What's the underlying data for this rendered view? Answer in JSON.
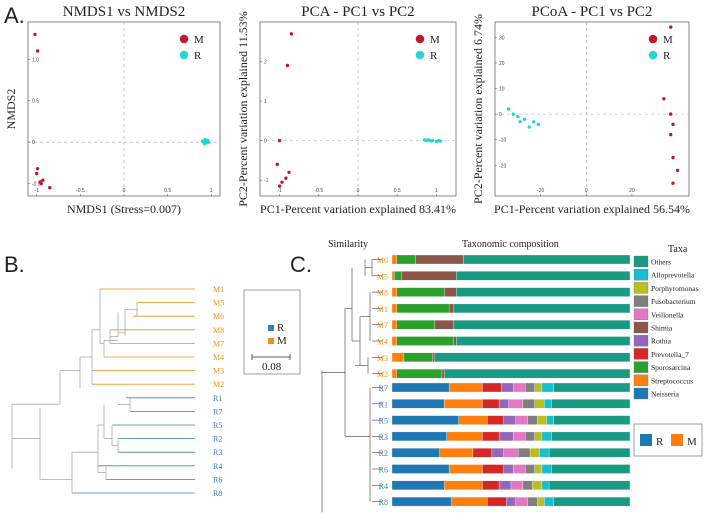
{
  "panel_labels": [
    "A.",
    "B.",
    "C."
  ],
  "colors": {
    "M": "#c0172c",
    "R": "#22d6d6",
    "treeM": "#e8941a",
    "treeR": "#3a7fc1",
    "grey": "#bbbbbb"
  },
  "chart_data": [
    {
      "type": "scatter",
      "title": "NMDS1 vs NMDS2",
      "xlabel": "NMDS1 (Stress=0.007)",
      "ylabel": "NMDS2",
      "xlim": [
        -1.1,
        1.1
      ],
      "ylim": [
        -0.65,
        1.45
      ],
      "xticks": [
        -1,
        -0.5,
        0,
        0.5,
        1
      ],
      "yticks": [
        1,
        0.5,
        0,
        -0.5
      ],
      "ytick_labels": [
        "1.0",
        "0.5",
        "0",
        "-0.5"
      ],
      "legend": [
        "M",
        "R"
      ],
      "series": [
        {
          "name": "M",
          "x": [
            -1.02,
            -0.99,
            -0.99,
            -1.0,
            -0.96,
            -0.93,
            -0.95,
            -0.85
          ],
          "y": [
            1.3,
            1.1,
            -0.32,
            -0.38,
            -0.48,
            -0.46,
            -0.5,
            -0.55
          ]
        },
        {
          "name": "R",
          "x": [
            0.9,
            0.92,
            0.93,
            0.95,
            0.96,
            0.94,
            0.97,
            0.91
          ],
          "y": [
            0.01,
            -0.02,
            0.03,
            0.0,
            0.02,
            -0.01,
            0.0,
            0.01
          ]
        }
      ]
    },
    {
      "type": "scatter",
      "title": "PCA - PC1 vs PC2",
      "xlabel": "PC1-Percent variation explained 83.41%",
      "ylabel": "PC2-Percent variation explained 11.53%",
      "xlim": [
        -1.25,
        1.25
      ],
      "ylim": [
        -1.4,
        3.0
      ],
      "xticks": [
        -1,
        -0.5,
        0,
        0.5,
        1
      ],
      "yticks": [
        2,
        1,
        0,
        -1
      ],
      "ytick_labels": [
        "2",
        "1",
        "0",
        "-1"
      ],
      "legend": [
        "M",
        "R"
      ],
      "series": [
        {
          "name": "M",
          "x": [
            -0.85,
            -0.9,
            -1.0,
            -1.03,
            -0.88,
            -0.92,
            -0.97,
            -1.0
          ],
          "y": [
            2.7,
            1.9,
            0.0,
            -0.6,
            -0.8,
            -0.95,
            -1.05,
            -1.15
          ]
        },
        {
          "name": "R",
          "x": [
            0.85,
            0.88,
            0.9,
            0.93,
            0.95,
            1.0,
            1.03,
            1.05
          ],
          "y": [
            0.02,
            0.0,
            0.02,
            -0.01,
            0.0,
            -0.02,
            0.0,
            -0.01
          ]
        }
      ]
    },
    {
      "type": "scatter",
      "title": "PCoA - PC1 vs PC2",
      "xlabel": "PC1-Percent variation explained 56.54%",
      "ylabel": "PC2-Percent variation explained 6.74%",
      "xlim": [
        -40,
        45
      ],
      "ylim": [
        -32,
        36
      ],
      "xticks": [
        -20,
        0,
        20
      ],
      "yticks": [
        30,
        20,
        10,
        0,
        -10,
        -20
      ],
      "ytick_labels": [
        "30",
        "20",
        "10",
        "0",
        "-10",
        "-20"
      ],
      "legend": [
        "M",
        "R"
      ],
      "series": [
        {
          "name": "M",
          "x": [
            37,
            34,
            37,
            38,
            37,
            38,
            40,
            38
          ],
          "y": [
            34,
            6,
            0,
            -4,
            -8,
            -17,
            -22,
            -27
          ]
        },
        {
          "name": "R",
          "x": [
            -34,
            -32,
            -30,
            -29,
            -27,
            -25,
            -23,
            -21
          ],
          "y": [
            2,
            0,
            -1,
            -3,
            -2,
            -5,
            -3,
            -4
          ]
        }
      ]
    }
  ],
  "dendrogram": {
    "labels": [
      "M1",
      "M5",
      "M6",
      "M8",
      "M7",
      "M4",
      "M3",
      "M2",
      "R1",
      "R7",
      "R5",
      "R2",
      "R3",
      "R4",
      "R6",
      "R8"
    ],
    "groups": [
      "M",
      "M",
      "M",
      "M",
      "M",
      "M",
      "M",
      "M",
      "R",
      "R",
      "R",
      "R",
      "R",
      "R",
      "R",
      "R"
    ],
    "legend": [
      "R",
      "M"
    ],
    "scale_label": "0.08"
  },
  "composition": {
    "similarity_label": "Similarity",
    "title": "Taxonomic composition",
    "taxa_title": "Taxa",
    "samples": [
      "M6",
      "M5",
      "M8",
      "M1",
      "M7",
      "M4",
      "M3",
      "M2",
      "R7",
      "R1",
      "R5",
      "R3",
      "R2",
      "R6",
      "R4",
      "R8"
    ],
    "taxa": [
      "Others",
      "Alloprevotella",
      "Porphyromonas",
      "Fusobacterium",
      "Veillonella",
      "Shimia",
      "Rothia",
      "Prevotella_7",
      "Sporosarcina",
      "Streptococcus",
      "Neisseria"
    ],
    "taxa_colors": {
      "Others": "#1a9a82",
      "Alloprevotella": "#17becf",
      "Porphyromonas": "#bcbd22",
      "Fusobacterium": "#7f7f7f",
      "Veillonella": "#e377c2",
      "Shimia": "#8c564b",
      "Rothia": "#9467bd",
      "Prevotella_7": "#d62728",
      "Sporosarcina": "#2ca02c",
      "Streptococcus": "#ff7f0e",
      "Neisseria": "#1f77b4"
    },
    "fractions": {
      "M6": {
        "Streptococcus": 0.02,
        "Sporosarcina": 0.08,
        "Shimia": 0.2,
        "Others": 0.7
      },
      "M5": {
        "Streptococcus": 0.01,
        "Sporosarcina": 0.03,
        "Shimia": 0.23,
        "Others": 0.73
      },
      "M8": {
        "Streptococcus": 0.02,
        "Sporosarcina": 0.2,
        "Shimia": 0.05,
        "Others": 0.73
      },
      "M1": {
        "Streptococcus": 0.02,
        "Sporosarcina": 0.22,
        "Shimia": 0.02,
        "Others": 0.74
      },
      "M7": {
        "Streptococcus": 0.02,
        "Sporosarcina": 0.16,
        "Shimia": 0.08,
        "Others": 0.74
      },
      "M4": {
        "Streptococcus": 0.02,
        "Sporosarcina": 0.24,
        "Shimia": 0.01,
        "Others": 0.73
      },
      "M3": {
        "Streptococcus": 0.05,
        "Sporosarcina": 0.12,
        "Shimia": 0.01,
        "Others": 0.82
      },
      "M2": {
        "Streptococcus": 0.02,
        "Sporosarcina": 0.19,
        "Shimia": 0.01,
        "Others": 0.78
      },
      "R7": {
        "Neisseria": 0.24,
        "Streptococcus": 0.14,
        "Prevotella_7": 0.08,
        "Rothia": 0.05,
        "Veillonella": 0.05,
        "Fusobacterium": 0.04,
        "Porphyromonas": 0.03,
        "Alloprevotella": 0.05,
        "Others": 0.32
      },
      "R1": {
        "Neisseria": 0.22,
        "Streptococcus": 0.16,
        "Prevotella_7": 0.07,
        "Rothia": 0.04,
        "Veillonella": 0.06,
        "Fusobacterium": 0.05,
        "Porphyromonas": 0.04,
        "Alloprevotella": 0.03,
        "Others": 0.33
      },
      "R5": {
        "Neisseria": 0.28,
        "Streptococcus": 0.12,
        "Prevotella_7": 0.07,
        "Rothia": 0.05,
        "Veillonella": 0.05,
        "Fusobacterium": 0.04,
        "Porphyromonas": 0.04,
        "Alloprevotella": 0.03,
        "Others": 0.32
      },
      "R3": {
        "Neisseria": 0.23,
        "Streptococcus": 0.15,
        "Prevotella_7": 0.07,
        "Rothia": 0.06,
        "Veillonella": 0.05,
        "Fusobacterium": 0.04,
        "Porphyromonas": 0.03,
        "Alloprevotella": 0.04,
        "Others": 0.33
      },
      "R2": {
        "Neisseria": 0.2,
        "Streptococcus": 0.14,
        "Prevotella_7": 0.08,
        "Rothia": 0.05,
        "Veillonella": 0.06,
        "Fusobacterium": 0.05,
        "Porphyromonas": 0.04,
        "Alloprevotella": 0.04,
        "Others": 0.34
      },
      "R6": {
        "Neisseria": 0.24,
        "Streptococcus": 0.14,
        "Prevotella_7": 0.09,
        "Rothia": 0.04,
        "Veillonella": 0.05,
        "Fusobacterium": 0.04,
        "Porphyromonas": 0.03,
        "Alloprevotella": 0.04,
        "Others": 0.33
      },
      "R4": {
        "Neisseria": 0.22,
        "Streptococcus": 0.16,
        "Prevotella_7": 0.07,
        "Rothia": 0.05,
        "Veillonella": 0.05,
        "Fusobacterium": 0.04,
        "Porphyromonas": 0.04,
        "Alloprevotella": 0.03,
        "Others": 0.34
      },
      "R8": {
        "Neisseria": 0.25,
        "Streptococcus": 0.15,
        "Prevotella_7": 0.08,
        "Rothia": 0.04,
        "Veillonella": 0.05,
        "Fusobacterium": 0.04,
        "Porphyromonas": 0.03,
        "Alloprevotella": 0.04,
        "Others": 0.32
      }
    },
    "legend": [
      "R",
      "M"
    ]
  }
}
